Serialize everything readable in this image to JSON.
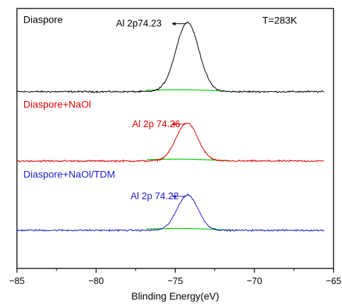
{
  "chart_data": {
    "type": "line",
    "title": "",
    "xlabel": "Blinding Energy(eV)",
    "ylabel": "",
    "xlim": [
      -85,
      -65
    ],
    "x_ticks": [
      -85,
      -80,
      -75,
      -70,
      -65
    ],
    "x_tick_labels": [
      "−85",
      "−80",
      "−75",
      "−70",
      "−65"
    ],
    "y_ticks_shown": false,
    "grid": false,
    "annotations": [
      {
        "text": "T=283K",
        "x": -69.5,
        "y": 2.98
      }
    ],
    "series": [
      {
        "name": "Diaspore",
        "color": "#000000",
        "offset": 2.0,
        "peak_x": -74.23,
        "peak_height": 1.0,
        "fwhm": 1.7,
        "x_start": -85,
        "x_end": -65.6,
        "peak_label": "Al 2p74.23",
        "peak_label_x": -77.3,
        "peak_label_color": "#000000",
        "label_color": "#000000",
        "label_x": -84.6,
        "label_y": 2.99,
        "background": {
          "color": "#00cc00",
          "x_start": -76.8,
          "x_end": -71.7,
          "level": 0.02,
          "slope": -0.015
        }
      },
      {
        "name": "Diaspore+NaOl",
        "color": "#e00000",
        "offset": 1.0,
        "peak_x": -74.26,
        "peak_height": 0.55,
        "fwhm": 1.6,
        "x_start": -85,
        "x_end": -65.6,
        "peak_label": "Al 2p 74.26",
        "peak_label_x": -76.2,
        "peak_label_color": "#e00000",
        "label_color": "#e00000",
        "label_x": -84.6,
        "label_y": 1.77,
        "background": {
          "color": "#00cc00",
          "x_start": -76.8,
          "x_end": -71.5,
          "level": 0.02,
          "slope": -0.02
        }
      },
      {
        "name": "Diaspore+NaOl/TDM",
        "color": "#1c1ccc",
        "offset": 0.0,
        "peak_x": -74.22,
        "peak_height": 0.51,
        "fwhm": 1.55,
        "x_start": -85,
        "x_end": -65.6,
        "peak_label": "Al 2p 74.22",
        "peak_label_x": -76.3,
        "peak_label_color": "#1c1ccc",
        "label_color": "#1c1ccc",
        "label_x": -84.6,
        "label_y": 0.76,
        "background": {
          "color": "#00cc00",
          "x_start": -76.8,
          "x_end": -71.3,
          "level": 0.02,
          "slope": -0.02
        }
      }
    ]
  }
}
